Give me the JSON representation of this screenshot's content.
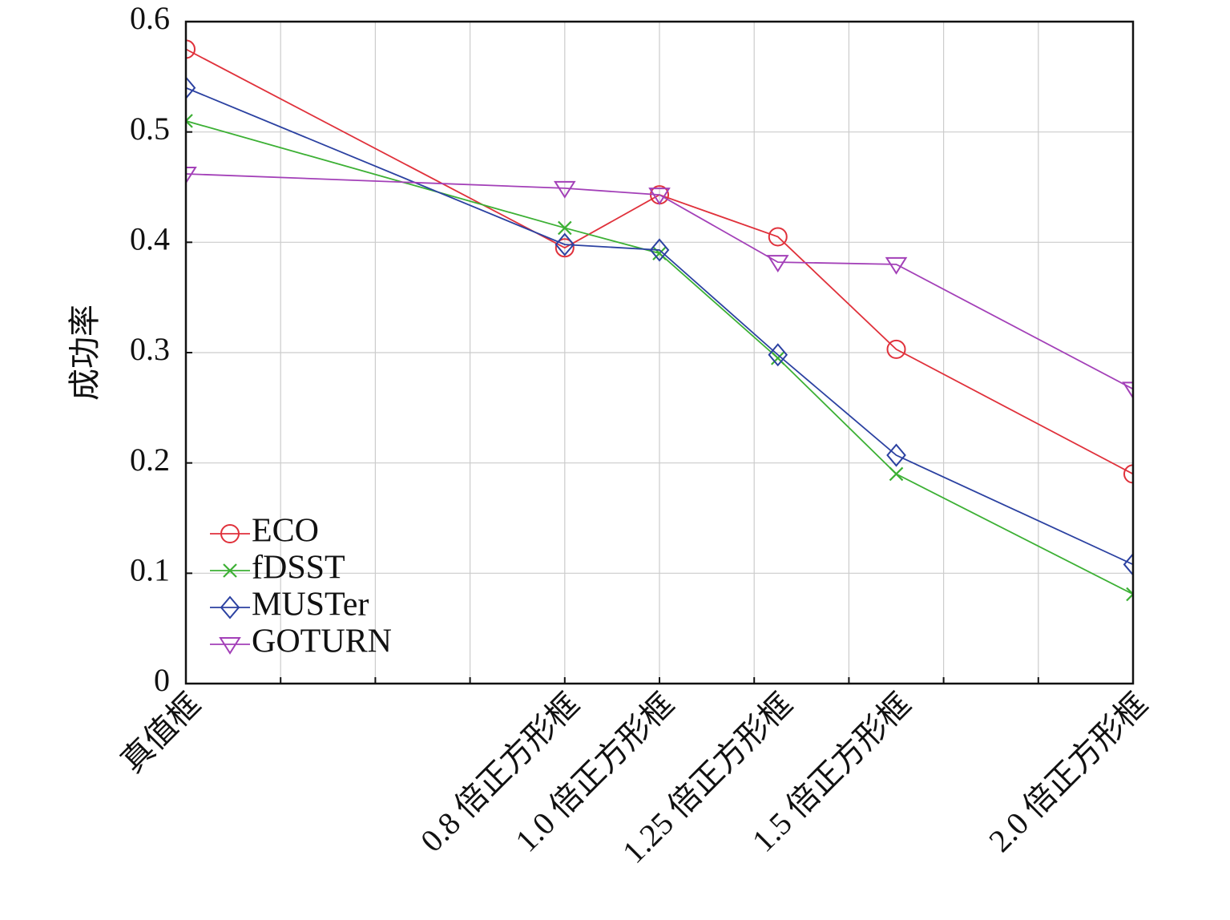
{
  "chart_data": {
    "type": "line",
    "title": "",
    "xlabel": "",
    "ylabel": "成功率",
    "ylim": [
      0,
      0.6
    ],
    "yticks": [
      "0",
      "0.1",
      "0.2",
      "0.3",
      "0.4",
      "0.5",
      "0.6"
    ],
    "x_axis_range": [
      0,
      10
    ],
    "categories": [
      {
        "label": "真值框",
        "x": 0
      },
      {
        "label": "0.8 倍正方形框",
        "x": 4
      },
      {
        "label": "1.0 倍正方形框",
        "x": 5
      },
      {
        "label": "1.25 倍正方形框",
        "x": 6.25
      },
      {
        "label": "1.5 倍正方形框",
        "x": 7.5
      },
      {
        "label": "2.0 倍正方形框",
        "x": 10
      }
    ],
    "grid": true,
    "legend_position": "bottom-left",
    "series": [
      {
        "name": "ECO",
        "color": "#e0313b",
        "marker": "circle",
        "values": [
          0.575,
          0.395,
          0.443,
          0.405,
          0.303,
          0.19
        ]
      },
      {
        "name": "fDSST",
        "color": "#3cb034",
        "marker": "x",
        "values": [
          0.51,
          0.413,
          0.39,
          0.295,
          0.19,
          0.081
        ]
      },
      {
        "name": "MUSTer",
        "color": "#2b41a1",
        "marker": "diamond",
        "values": [
          0.54,
          0.398,
          0.393,
          0.298,
          0.207,
          0.108
        ]
      },
      {
        "name": "GOTURN",
        "color": "#a340b8",
        "marker": "triangle-down",
        "values": [
          0.462,
          0.449,
          0.443,
          0.382,
          0.38,
          0.267
        ]
      }
    ]
  }
}
